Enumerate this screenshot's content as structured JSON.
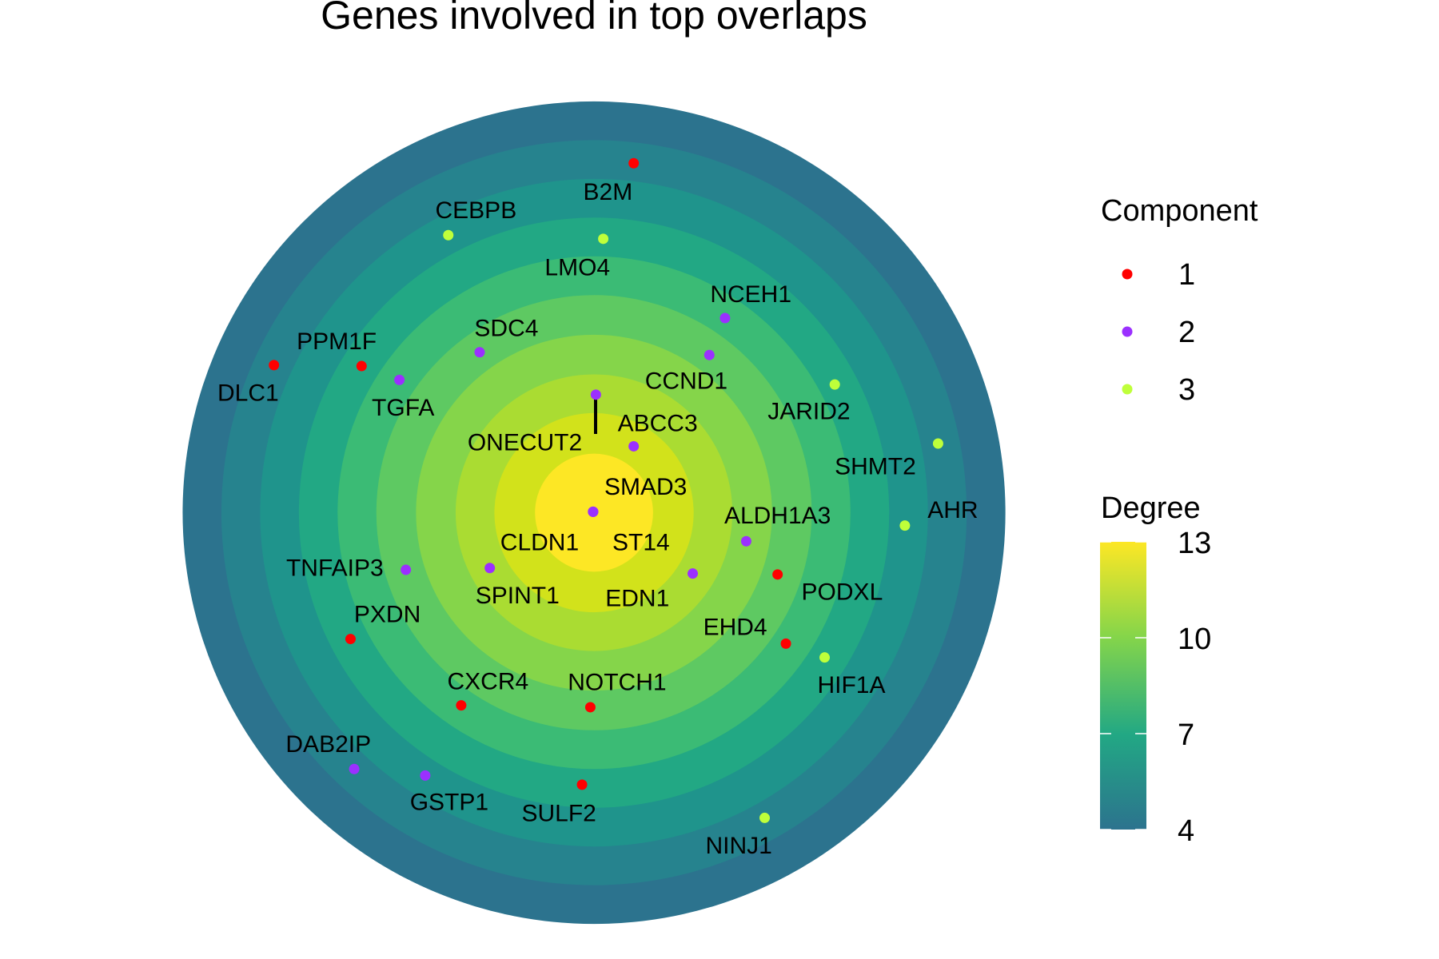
{
  "chart_data": {
    "type": "scatter",
    "title": "Genes involved in top overlaps",
    "layout": "concentric-rings",
    "ring_colors": {
      "4": "#2C738E",
      "5": "#26838E",
      "6": "#1F948C",
      "7": "#22A884",
      "8": "#3BBB75",
      "9": "#5EC962",
      "10": "#85D54A",
      "11": "#AADC32",
      "12": "#D2E21B",
      "13": "#FDE725"
    },
    "component_legend": {
      "title": "Component",
      "entries": [
        {
          "label": "1",
          "color": "#FF0000"
        },
        {
          "label": "2",
          "color": "#9B30FF"
        },
        {
          "label": "3",
          "color": "#BFFF3A"
        }
      ]
    },
    "degree_legend": {
      "title": "Degree",
      "range": [
        4,
        13
      ],
      "ticks": [
        "13",
        "10",
        "7",
        "4"
      ],
      "low_color": "#2C738E",
      "high_color": "#FDE725"
    },
    "nodes": [
      {
        "gene": "SMAD3",
        "component": "2",
        "degree": 13
      },
      {
        "gene": "CLDN1",
        "component": "2",
        "degree": 13
      },
      {
        "gene": "ST14",
        "component": "2",
        "degree": 13
      },
      {
        "gene": "ABCC3",
        "component": "2",
        "degree": 12
      },
      {
        "gene": "ONECUT2",
        "component": "2",
        "degree": 11
      },
      {
        "gene": "EDN1",
        "component": "2",
        "degree": 11
      },
      {
        "gene": "SPINT1",
        "component": "2",
        "degree": 11
      },
      {
        "gene": "ALDH1A3",
        "component": "2",
        "degree": 10
      },
      {
        "gene": "CCND1",
        "component": "2",
        "degree": 9
      },
      {
        "gene": "SDC4",
        "component": "2",
        "degree": 9
      },
      {
        "gene": "TNFAIP3",
        "component": "2",
        "degree": 9
      },
      {
        "gene": "PODXL",
        "component": "1",
        "degree": 9
      },
      {
        "gene": "NOTCH1",
        "component": "1",
        "degree": 9
      },
      {
        "gene": "NCEH1",
        "component": "2",
        "degree": 8
      },
      {
        "gene": "TGFA",
        "component": "2",
        "degree": 8
      },
      {
        "gene": "EHD4",
        "component": "1",
        "degree": 8
      },
      {
        "gene": "CXCR4",
        "component": "1",
        "degree": 8
      },
      {
        "gene": "PPM1F",
        "component": "1",
        "degree": 7
      },
      {
        "gene": "LMO4",
        "component": "3",
        "degree": 7
      },
      {
        "gene": "JARID2",
        "component": "3",
        "degree": 7
      },
      {
        "gene": "HIF1A",
        "component": "3",
        "degree": 7
      },
      {
        "gene": "PXDN",
        "component": "1",
        "degree": 7
      },
      {
        "gene": "SULF2",
        "component": "1",
        "degree": 7
      },
      {
        "gene": "CEBPB",
        "component": "3",
        "degree": 6
      },
      {
        "gene": "AHR",
        "component": "3",
        "degree": 6
      },
      {
        "gene": "GSTP1",
        "component": "2",
        "degree": 6
      },
      {
        "gene": "DLC1",
        "component": "1",
        "degree": 5
      },
      {
        "gene": "B2M",
        "component": "1",
        "degree": 5
      },
      {
        "gene": "SHMT2",
        "component": "3",
        "degree": 5
      },
      {
        "gene": "DAB2IP",
        "component": "2",
        "degree": 5
      },
      {
        "gene": "NINJ1",
        "component": "3",
        "degree": 5
      }
    ]
  }
}
